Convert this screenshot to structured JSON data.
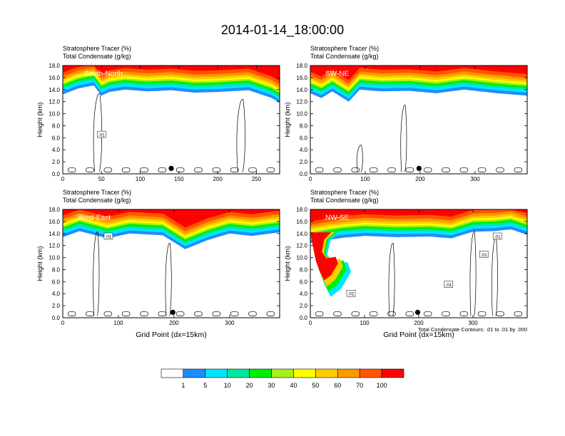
{
  "page": {
    "title": "2014-01-14_18:00:00"
  },
  "common": {
    "left_title_1": "Stratosphere Tracer   (%)",
    "left_title_2": "Total Condensate   (g/kg)",
    "ylabel": "Height (km)",
    "xlabel": "Grid Point (dx=15km)",
    "contour_note": "Total Condensate Contours: .01 to .01 by .000",
    "contour_label": ".01"
  },
  "colorbar": {
    "colors": [
      "#ffffff",
      "#1e8cff",
      "#00e5ff",
      "#00e8a0",
      "#00ee00",
      "#a6f01c",
      "#ffff00",
      "#ffcc00",
      "#ff9900",
      "#ff5500",
      "#ff0000"
    ],
    "labels": [
      "1",
      "5",
      "10",
      "20",
      "30",
      "40",
      "50",
      "60",
      "70",
      "100"
    ]
  },
  "chart_data": [
    {
      "type": "heatmap",
      "name": "South-North",
      "ylim": [
        0,
        18
      ],
      "yticks": [
        "0.0",
        "2.0",
        "4.0",
        "6.0",
        "8.0",
        "10.0",
        "12.0",
        "14.0",
        "16.0",
        "18.0"
      ],
      "xlim": [
        0,
        280
      ],
      "xticks": [
        0,
        50,
        100,
        150,
        200,
        250
      ],
      "marker_x": 140,
      "tropopause": [
        [
          0,
          14.8
        ],
        [
          20,
          15.8
        ],
        [
          40,
          16.3
        ],
        [
          50,
          14.6
        ],
        [
          60,
          15.2
        ],
        [
          80,
          15.6
        ],
        [
          110,
          15.3
        ],
        [
          140,
          15.5
        ],
        [
          170,
          15.1
        ],
        [
          200,
          15.2
        ],
        [
          240,
          15.5
        ],
        [
          270,
          14.2
        ],
        [
          280,
          13.4
        ]
      ],
      "contour_label_pos": [
        [
          50,
          6.5
        ]
      ]
    },
    {
      "type": "heatmap",
      "name": "SW-NE",
      "ylim": [
        0,
        18
      ],
      "yticks": [
        "0.0",
        "2.0",
        "4.0",
        "6.0",
        "8.0",
        "10.0",
        "12.0",
        "14.0",
        "16.0",
        "18.0"
      ],
      "xlim": [
        0,
        395
      ],
      "xticks": [
        0,
        100,
        200,
        300
      ],
      "marker_x": 198,
      "tropopause": [
        [
          0,
          15.0
        ],
        [
          20,
          14.2
        ],
        [
          40,
          15.3
        ],
        [
          70,
          13.6
        ],
        [
          90,
          15.6
        ],
        [
          130,
          15.3
        ],
        [
          180,
          15.4
        ],
        [
          230,
          15.0
        ],
        [
          280,
          15.6
        ],
        [
          340,
          15.0
        ],
        [
          395,
          14.6
        ]
      ],
      "contour_label_pos": []
    },
    {
      "type": "heatmap",
      "name": "West-East",
      "ylim": [
        0,
        18
      ],
      "yticks": [
        "0.0",
        "2.0",
        "4.0",
        "6.0",
        "8.0",
        "10.0",
        "12.0",
        "14.0",
        "16.0",
        "18.0"
      ],
      "xlim": [
        0,
        390
      ],
      "xticks": [
        0,
        100,
        200,
        300
      ],
      "marker_x": 198,
      "tropopause": [
        [
          0,
          15.0
        ],
        [
          30,
          16.0
        ],
        [
          60,
          15.3
        ],
        [
          80,
          14.8
        ],
        [
          120,
          15.6
        ],
        [
          180,
          15.3
        ],
        [
          220,
          13.0
        ],
        [
          260,
          14.5
        ],
        [
          300,
          15.6
        ],
        [
          340,
          15.2
        ],
        [
          390,
          15.8
        ]
      ],
      "contour_label_pos": [
        [
          82,
          13.5
        ]
      ]
    },
    {
      "type": "heatmap",
      "name": "NW-SE",
      "ylim": [
        0,
        18
      ],
      "yticks": [
        "0.0",
        "2.0",
        "4.0",
        "6.0",
        "8.0",
        "10.0",
        "12.0",
        "14.0",
        "16.0",
        "18.0"
      ],
      "xlim": [
        0,
        400
      ],
      "xticks": [
        0,
        100,
        200,
        300
      ],
      "marker_x": 198,
      "tropopause": [
        [
          0,
          14.0
        ],
        [
          30,
          14.5
        ],
        [
          60,
          14.9
        ],
        [
          100,
          15.2
        ],
        [
          160,
          15.0
        ],
        [
          220,
          15.1
        ],
        [
          260,
          14.8
        ],
        [
          300,
          15.9
        ],
        [
          340,
          16.0
        ],
        [
          370,
          16.3
        ],
        [
          400,
          15.4
        ]
      ],
      "contour_label_pos": [
        [
          75,
          4.0
        ],
        [
          255,
          5.5
        ],
        [
          320,
          10.5
        ],
        [
          345,
          13.5
        ]
      ]
    }
  ]
}
